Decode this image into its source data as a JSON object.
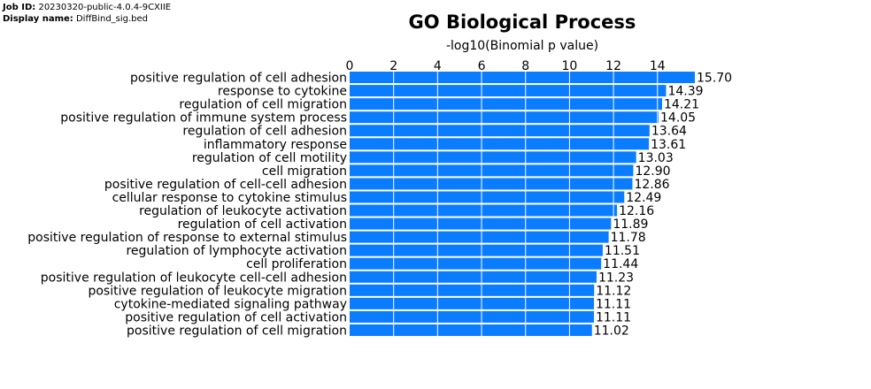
{
  "job": {
    "id_label": "Job ID:",
    "id_value": "20230320-public-4.0.4-9CXIIE",
    "name_label": "Display name:",
    "name_value": "DiffBind_sig.bed"
  },
  "colors": {
    "bar": "#0a7cff",
    "grid": "#ffffff",
    "text": "#000000"
  },
  "chart_data": {
    "type": "bar",
    "orientation": "horizontal",
    "title": "GO Biological Process",
    "xlabel": "-log10(Binomial p value)",
    "ylabel": "",
    "xlim": [
      0,
      15.7
    ],
    "xticks": [
      0,
      2,
      4,
      6,
      8,
      10,
      12,
      14
    ],
    "xaxis_position": "top",
    "grid": "vertical lines over bars",
    "categories": [
      "positive regulation of cell adhesion",
      "response to cytokine",
      "regulation of cell migration",
      "positive regulation of immune system process",
      "regulation of cell adhesion",
      "inflammatory response",
      "regulation of cell motility",
      "cell migration",
      "positive regulation of cell-cell adhesion",
      "cellular response to cytokine stimulus",
      "regulation of leukocyte activation",
      "regulation of cell activation",
      "positive regulation of response to external stimulus",
      "regulation of lymphocyte activation",
      "cell proliferation",
      "positive regulation of leukocyte cell-cell adhesion",
      "positive regulation of leukocyte migration",
      "cytokine-mediated signaling pathway",
      "positive regulation of cell activation",
      "positive regulation of cell migration"
    ],
    "values": [
      15.7,
      14.39,
      14.21,
      14.05,
      13.64,
      13.61,
      13.03,
      12.9,
      12.86,
      12.49,
      12.16,
      11.89,
      11.78,
      11.51,
      11.44,
      11.23,
      11.12,
      11.11,
      11.11,
      11.02
    ],
    "value_labels": [
      "15.70",
      "14.39",
      "14.21",
      "14.05",
      "13.64",
      "13.61",
      "13.03",
      "12.90",
      "12.86",
      "12.49",
      "12.16",
      "11.89",
      "11.78",
      "11.51",
      "11.44",
      "11.23",
      "11.12",
      "11.11",
      "11.11",
      "11.02"
    ]
  }
}
